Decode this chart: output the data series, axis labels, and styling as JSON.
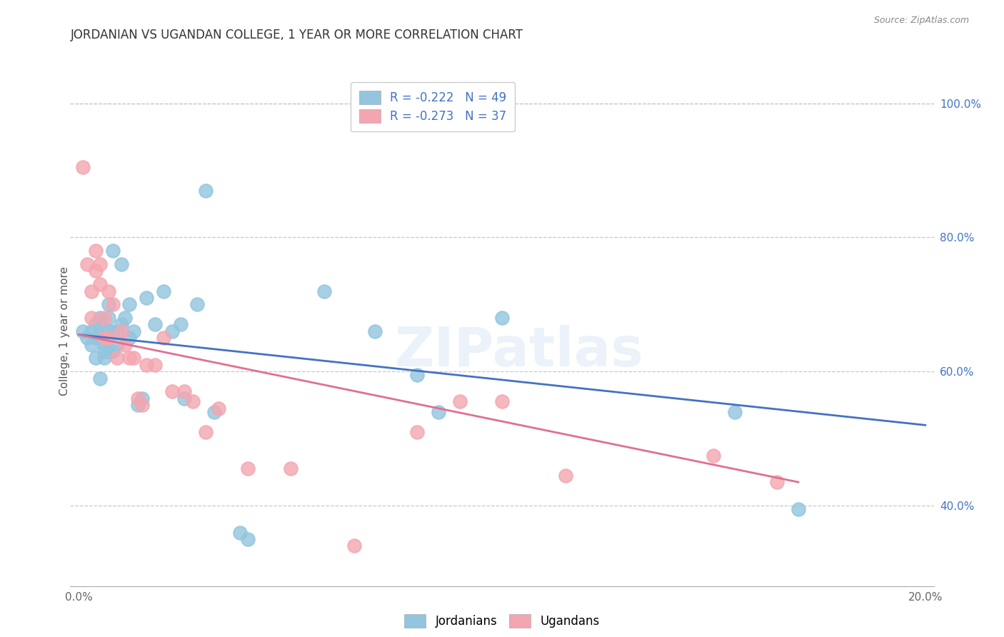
{
  "title": "JORDANIAN VS UGANDAN COLLEGE, 1 YEAR OR MORE CORRELATION CHART",
  "source": "Source: ZipAtlas.com",
  "ylabel": "College, 1 year or more",
  "xlim": [
    -0.002,
    0.202
  ],
  "ylim": [
    0.28,
    1.04
  ],
  "x_ticks": [
    0.0,
    0.04,
    0.08,
    0.12,
    0.16,
    0.2
  ],
  "x_tick_labels": [
    "0.0%",
    "",
    "",
    "",
    "",
    "20.0%"
  ],
  "y_ticks_right": [
    0.4,
    0.6,
    0.8,
    1.0
  ],
  "y_tick_labels_right": [
    "40.0%",
    "60.0%",
    "80.0%",
    "100.0%"
  ],
  "legend_blue_label": "R = -0.222   N = 49",
  "legend_pink_label": "R = -0.273   N = 37",
  "blue_color": "#92c5de",
  "pink_color": "#f4a6b0",
  "line_blue_color": "#4472c4",
  "line_pink_color": "#e07090",
  "watermark": "ZIPatlas",
  "blue_line_x0": 0.0,
  "blue_line_y0": 0.655,
  "blue_line_x1": 0.2,
  "blue_line_y1": 0.52,
  "pink_line_x0": 0.0,
  "pink_line_y0": 0.655,
  "pink_line_x1": 0.17,
  "pink_line_y1": 0.435,
  "jordanians_x": [
    0.001,
    0.002,
    0.003,
    0.003,
    0.004,
    0.004,
    0.004,
    0.005,
    0.005,
    0.005,
    0.005,
    0.006,
    0.006,
    0.006,
    0.007,
    0.007,
    0.007,
    0.007,
    0.008,
    0.008,
    0.008,
    0.009,
    0.009,
    0.01,
    0.01,
    0.011,
    0.012,
    0.012,
    0.013,
    0.014,
    0.015,
    0.016,
    0.018,
    0.02,
    0.022,
    0.024,
    0.025,
    0.028,
    0.03,
    0.032,
    0.038,
    0.04,
    0.058,
    0.07,
    0.08,
    0.085,
    0.1,
    0.155,
    0.17
  ],
  "jordanians_y": [
    0.66,
    0.65,
    0.66,
    0.64,
    0.67,
    0.65,
    0.62,
    0.68,
    0.67,
    0.65,
    0.59,
    0.64,
    0.63,
    0.62,
    0.7,
    0.68,
    0.66,
    0.63,
    0.78,
    0.66,
    0.63,
    0.66,
    0.64,
    0.76,
    0.67,
    0.68,
    0.7,
    0.65,
    0.66,
    0.55,
    0.56,
    0.71,
    0.67,
    0.72,
    0.66,
    0.67,
    0.56,
    0.7,
    0.87,
    0.54,
    0.36,
    0.35,
    0.72,
    0.66,
    0.595,
    0.54,
    0.68,
    0.54,
    0.395
  ],
  "ugandans_x": [
    0.001,
    0.002,
    0.003,
    0.003,
    0.004,
    0.004,
    0.005,
    0.005,
    0.006,
    0.006,
    0.007,
    0.007,
    0.008,
    0.009,
    0.01,
    0.011,
    0.012,
    0.013,
    0.014,
    0.015,
    0.016,
    0.018,
    0.02,
    0.022,
    0.025,
    0.027,
    0.03,
    0.033,
    0.04,
    0.05,
    0.065,
    0.09,
    0.115,
    0.15,
    0.165,
    0.1,
    0.08
  ],
  "ugandans_y": [
    0.905,
    0.76,
    0.72,
    0.68,
    0.78,
    0.75,
    0.76,
    0.73,
    0.68,
    0.65,
    0.72,
    0.65,
    0.7,
    0.62,
    0.66,
    0.64,
    0.62,
    0.62,
    0.56,
    0.55,
    0.61,
    0.61,
    0.65,
    0.57,
    0.57,
    0.555,
    0.51,
    0.545,
    0.455,
    0.455,
    0.34,
    0.555,
    0.445,
    0.475,
    0.435,
    0.555,
    0.51
  ]
}
